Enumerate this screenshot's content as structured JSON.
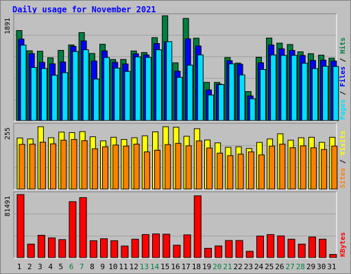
{
  "title": "Daily usage for November 2021",
  "chart_data": [
    {
      "type": "bar",
      "panel": "top",
      "categories": [
        "1",
        "2",
        "3",
        "4",
        "5",
        "6",
        "7",
        "8",
        "9",
        "10",
        "11",
        "12",
        "13",
        "14",
        "15",
        "16",
        "17",
        "18",
        "19",
        "20",
        "21",
        "22",
        "23",
        "24",
        "25",
        "26",
        "27",
        "28",
        "29",
        "30",
        "31"
      ],
      "ylabel_parts": [
        "Pages",
        "Files",
        "Hits"
      ],
      "max_label": "1891",
      "ylim": [
        0,
        1891
      ],
      "grid": true,
      "series": [
        {
          "name": "Hits",
          "color": "#008040",
          "values": [
            1624,
            1259,
            1251,
            1133,
            1267,
            1364,
            1587,
            1211,
            1377,
            1102,
            1103,
            1255,
            1228,
            1496,
            1891,
            1041,
            1843,
            1486,
            689,
            689,
            1137,
            1037,
            524,
            1143,
            1489,
            1397,
            1372,
            1241,
            1207,
            1181,
            1125
          ]
        },
        {
          "name": "Files",
          "color": "#0000ff",
          "values": [
            1470,
            1209,
            1051,
            1024,
            1058,
            1340,
            1437,
            1075,
            1258,
            1051,
            1022,
            1205,
            1185,
            1390,
            1421,
            891,
            1475,
            1346,
            554,
            657,
            1080,
            1016,
            445,
            1043,
            1364,
            1295,
            1266,
            1175,
            1085,
            1090,
            1075
          ]
        },
        {
          "name": "Pages",
          "color": "#00e0ff",
          "values": [
            1361,
            958,
            940,
            818,
            865,
            1246,
            1277,
            749,
            1138,
            946,
            887,
            1149,
            1140,
            1277,
            1424,
            780,
            1000,
            1185,
            461,
            649,
            1024,
            824,
            394,
            922,
            1184,
            1176,
            1176,
            1035,
            938,
            981,
            976
          ]
        }
      ]
    },
    {
      "type": "bar",
      "panel": "middle",
      "categories": [
        "1",
        "2",
        "3",
        "4",
        "5",
        "6",
        "7",
        "8",
        "9",
        "10",
        "11",
        "12",
        "13",
        "14",
        "15",
        "16",
        "17",
        "18",
        "19",
        "20",
        "21",
        "22",
        "23",
        "24",
        "25",
        "26",
        "27",
        "28",
        "29",
        "30",
        "31"
      ],
      "ylabel_parts": [
        "Sites",
        "Visits"
      ],
      "max_label": "255",
      "ylim": [
        0,
        255
      ],
      "grid": true,
      "series": [
        {
          "name": "Visits",
          "color": "#ffff00",
          "values": [
            209,
            205,
            255,
            210,
            233,
            231,
            235,
            214,
            197,
            212,
            203,
            210,
            218,
            234,
            255,
            253,
            216,
            247,
            201,
            189,
            171,
            173,
            166,
            191,
            205,
            226,
            200,
            210,
            212,
            191,
            212
          ]
        },
        {
          "name": "Sites",
          "color": "#ff8000",
          "values": [
            183,
            184,
            192,
            185,
            200,
            203,
            198,
            165,
            173,
            180,
            176,
            184,
            152,
            159,
            182,
            187,
            177,
            197,
            168,
            147,
            137,
            143,
            152,
            140,
            176,
            184,
            169,
            177,
            169,
            162,
            176
          ]
        }
      ]
    },
    {
      "type": "bar",
      "panel": "bottom",
      "categories": [
        "1",
        "2",
        "3",
        "4",
        "5",
        "6",
        "7",
        "8",
        "9",
        "10",
        "11",
        "12",
        "13",
        "14",
        "15",
        "16",
        "17",
        "18",
        "19",
        "20",
        "21",
        "22",
        "23",
        "24",
        "25",
        "26",
        "27",
        "28",
        "29",
        "30",
        "31"
      ],
      "ylabel_parts": [
        "KBytes"
      ],
      "max_label": "81491",
      "ylim": [
        0,
        81491
      ],
      "grid": true,
      "series": [
        {
          "name": "KBytes",
          "color": "#ff0000",
          "values": [
            81491,
            17440,
            28837,
            25458,
            23202,
            72286,
            77543,
            21796,
            24364,
            21796,
            14937,
            23741,
            29772,
            30626,
            30230,
            16001,
            29372,
            79848,
            12029,
            15053,
            22063,
            22063,
            8080,
            27872,
            29772,
            28030,
            23741,
            17440,
            26625,
            23741,
            4000
          ]
        }
      ]
    }
  ],
  "colors": {
    "background": "#c0c0c0",
    "plot_background": "#c0c0c0",
    "grid": "#a0a0a0",
    "title": "#0000ff",
    "weekday_label": "#000000",
    "weekend_label": "#008040"
  },
  "weekend_days": [
    "6",
    "7",
    "13",
    "14",
    "20",
    "21",
    "27",
    "28"
  ]
}
